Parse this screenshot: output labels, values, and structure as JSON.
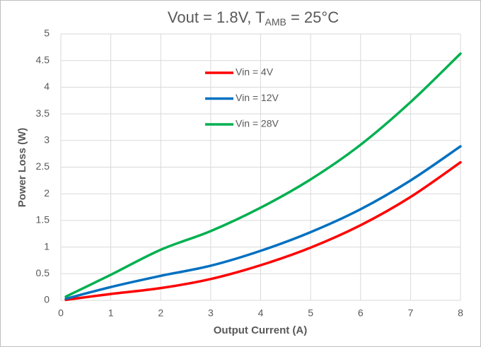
{
  "chart_data": {
    "type": "line",
    "title": [
      "Vout = 1.8V, T",
      "AMB",
      " = 25°C"
    ],
    "xlabel": "Output Current (A)",
    "ylabel": "Power Loss (W)",
    "x": [
      0.1,
      1,
      2,
      3,
      4,
      5,
      6,
      7,
      8
    ],
    "series": [
      {
        "name": "Vin = 4V",
        "color": "#ff0000",
        "values": [
          0.01,
          0.12,
          0.23,
          0.4,
          0.66,
          0.99,
          1.41,
          1.94,
          2.59
        ]
      },
      {
        "name": "Vin = 12V",
        "color": "#0070c0",
        "values": [
          0.03,
          0.25,
          0.46,
          0.65,
          0.93,
          1.28,
          1.71,
          2.25,
          2.89
        ]
      },
      {
        "name": "Vin = 28V",
        "color": "#00b050",
        "values": [
          0.07,
          0.48,
          0.95,
          1.3,
          1.74,
          2.27,
          2.92,
          3.72,
          4.63
        ]
      }
    ],
    "xlim": [
      0,
      8
    ],
    "xticks": [
      0,
      1,
      2,
      3,
      4,
      5,
      6,
      7,
      8
    ],
    "ylim": [
      0,
      5
    ],
    "yticks": [
      0,
      0.5,
      1,
      1.5,
      2,
      2.5,
      3,
      3.5,
      4,
      4.5,
      5
    ],
    "grid": true,
    "legend": "upper center"
  }
}
